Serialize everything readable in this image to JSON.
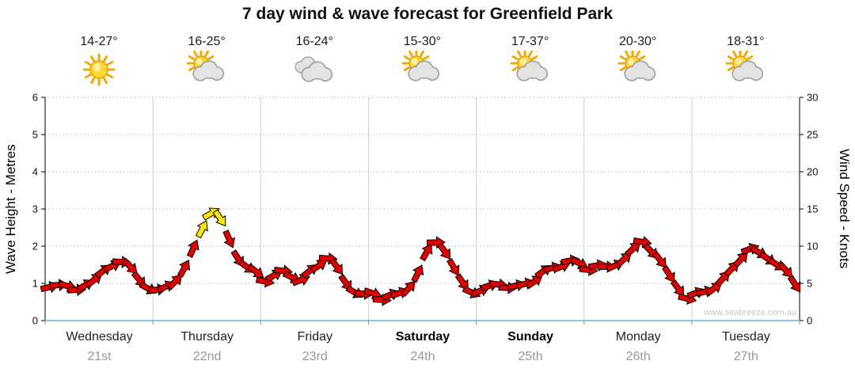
{
  "title": "7 day wind & wave forecast for Greenfield Park",
  "watermark": "www.seabreeze.com.au",
  "axes": {
    "left_label": "Wave Height - Metres",
    "right_label": "Wind Speed - Knots",
    "left_ticks": [
      "0",
      "1",
      "2",
      "3",
      "4",
      "5",
      "6"
    ],
    "right_ticks": [
      "0",
      "5",
      "10",
      "15",
      "20",
      "25",
      "30"
    ]
  },
  "days": [
    {
      "name": "Wednesday",
      "date": "21st",
      "temp": "14-27°",
      "icon": "sunny",
      "weekend": false
    },
    {
      "name": "Thursday",
      "date": "22nd",
      "temp": "16-25°",
      "icon": "sun-cloud",
      "weekend": false
    },
    {
      "name": "Friday",
      "date": "23rd",
      "temp": "16-24°",
      "icon": "cloudy",
      "weekend": false
    },
    {
      "name": "Saturday",
      "date": "24th",
      "temp": "15-30°",
      "icon": "sun-cloud",
      "weekend": true
    },
    {
      "name": "Sunday",
      "date": "25th",
      "temp": "17-37°",
      "icon": "sun-cloud",
      "weekend": true
    },
    {
      "name": "Monday",
      "date": "26th",
      "temp": "20-30°",
      "icon": "sun-cloud",
      "weekend": false
    },
    {
      "name": "Tuesday",
      "date": "27th",
      "temp": "18-31°",
      "icon": "sun-cloud",
      "weekend": false
    }
  ],
  "colors": {
    "arrow": "#e00000",
    "arrow_strong": "#ffe800",
    "grid_vertical": "#cfcfcf",
    "grid_horizontal": "#b8b8b8",
    "axis": "#000000",
    "baseline": "#85c8e6"
  },
  "chart_data": {
    "type": "line",
    "title": "7 day wind & wave forecast for Greenfield Park",
    "x_unit": "2-hourly steps over 7 days",
    "points_per_day": 12,
    "ylim_left_metres": [
      0,
      6
    ],
    "ylim_right_knots": [
      0,
      30
    ],
    "scale_note": "wave height (metres) = wind speed (knots) / 5 on this dual axis",
    "strong_threshold_knots": 12,
    "series": [
      {
        "name": "Wind Speed (knots)",
        "values": [
          4.5,
          5,
          4.5,
          4,
          5,
          5.5,
          6.5,
          7.5,
          8,
          7,
          5.5,
          4.5,
          4,
          4.5,
          5.5,
          7,
          9.5,
          12.5,
          14.5,
          13.5,
          11,
          8.5,
          7,
          6.5,
          5.5,
          6,
          6.5,
          6,
          5.5,
          6.5,
          7.5,
          8.5,
          7,
          5,
          4,
          3.5,
          3.5,
          3,
          3.5,
          3.5,
          4.5,
          6.5,
          9,
          10.5,
          9.5,
          7,
          5,
          4,
          4,
          4.5,
          5,
          4.5,
          4.5,
          5,
          5.5,
          6.5,
          7,
          7.5,
          8,
          7.5,
          7,
          7.5,
          7,
          7.5,
          8.5,
          9.5,
          10.5,
          9.5,
          8,
          6,
          4.5,
          3,
          3.5,
          4,
          4.5,
          5.5,
          7,
          8.5,
          9.5,
          9,
          8.5,
          7.5,
          6.5,
          5
        ]
      }
    ]
  }
}
